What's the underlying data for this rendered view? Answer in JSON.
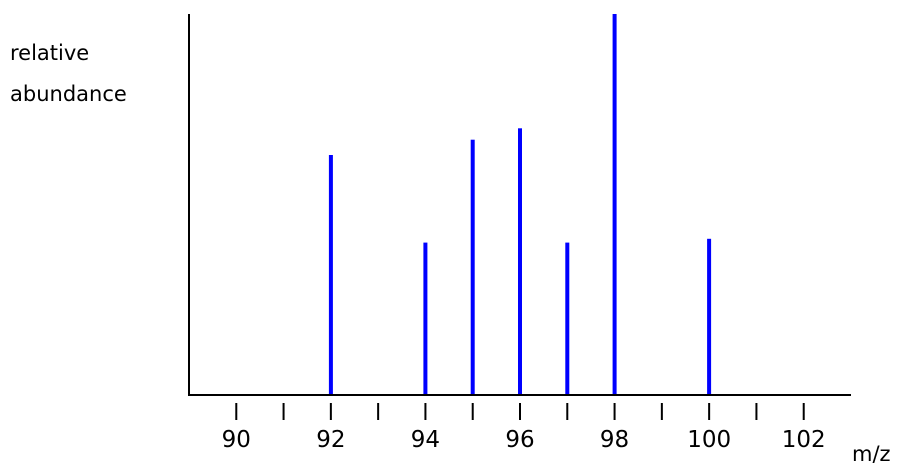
{
  "chart_data": {
    "type": "bar",
    "xlabel": "m/z",
    "ylabel": [
      "relative",
      "abundance"
    ],
    "xlim": [
      89,
      103
    ],
    "ylim": [
      0,
      100
    ],
    "xticks": [
      90,
      91,
      92,
      93,
      94,
      95,
      96,
      97,
      98,
      99,
      100,
      101,
      102
    ],
    "xtick_labels": [
      90,
      92,
      94,
      96,
      98,
      100,
      102
    ],
    "x": [
      92,
      94,
      95,
      96,
      97,
      98,
      100
    ],
    "values": [
      63,
      40,
      67,
      70,
      40,
      100,
      41
    ],
    "colors": {
      "bars": "#0000ff",
      "axes": "#000000"
    }
  }
}
